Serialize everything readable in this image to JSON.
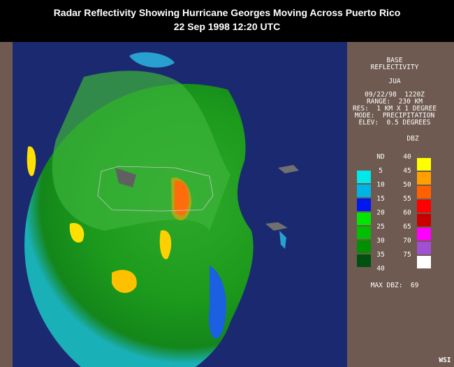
{
  "header": {
    "title": "Radar Reflectivity Showing Hurricane Georges Moving Across Puerto Rico",
    "subtitle": "22 Sep 1998 12:20 UTC"
  },
  "panel": {
    "lines": [
      "BASE",
      "REFLECTIVITY",
      "JUA",
      "09/22/98  1220Z",
      "RANGE:  230 KM",
      "RES:  1 KM X 1 DEGREE",
      "MODE:  PRECIPITATION",
      "ELEV:  0.5 DEGREES"
    ],
    "unit": "DBZ",
    "scale_left": {
      "labels": [
        "ND",
        "5",
        "10",
        "15",
        "20",
        "25",
        "30",
        "35",
        "40"
      ],
      "colors": [
        "#00e8e8",
        "#00b4e6",
        "#0018f0",
        "#00e600",
        "#00bf00",
        "#009000",
        "#005010"
      ]
    },
    "scale_right": {
      "labels": [
        "40",
        "45",
        "50",
        "55",
        "60",
        "65",
        "70",
        "75"
      ],
      "colors": [
        "#ffff00",
        "#ffa000",
        "#ff6000",
        "#ff0000",
        "#c80000",
        "#ff00ff",
        "#a050d0",
        "#ffffff"
      ]
    },
    "max_dbz": "MAX DBZ:  69"
  },
  "footer": {
    "credit": "WSI"
  }
}
